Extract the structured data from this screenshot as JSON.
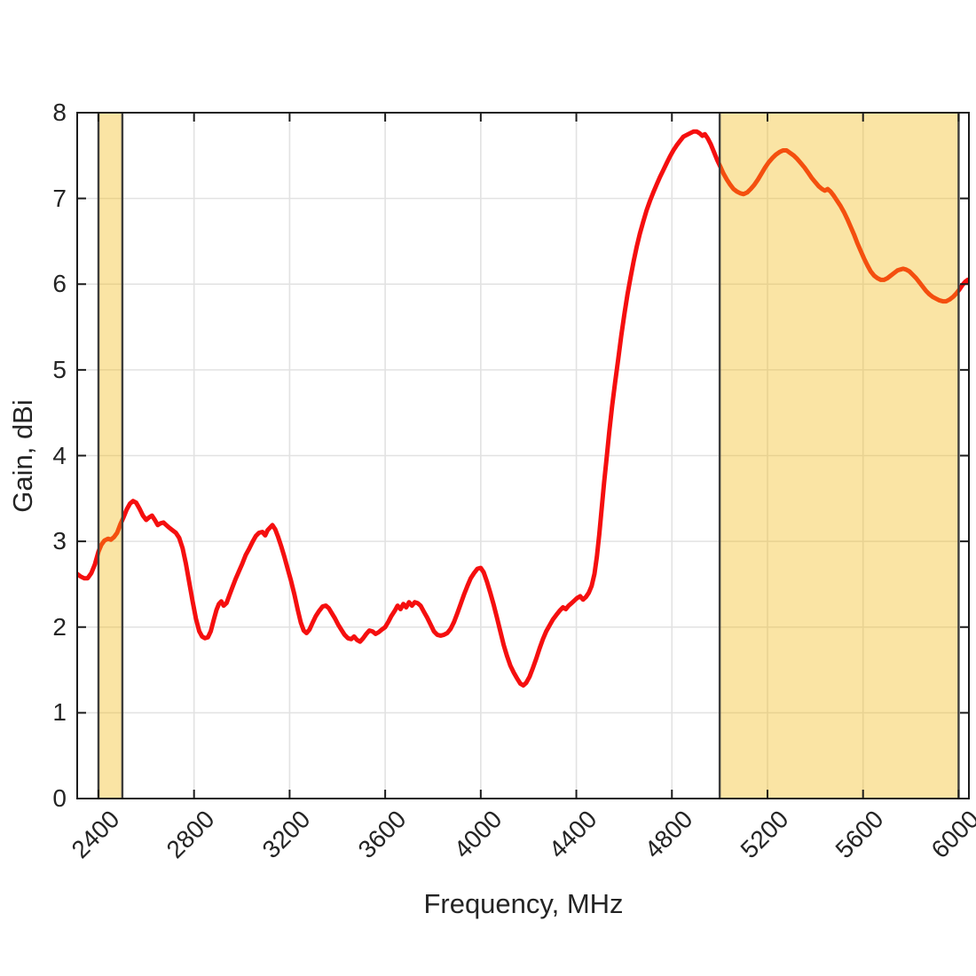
{
  "chart_data": {
    "type": "line",
    "title": "",
    "xlabel": "Frequency, MHz",
    "ylabel": "Gain, dBi",
    "xlim": [
      2311,
      6043
    ],
    "ylim": [
      0,
      8
    ],
    "x_ticks": [
      2400,
      2800,
      3200,
      3600,
      4000,
      4400,
      4800,
      5200,
      5600,
      6000
    ],
    "y_ticks": [
      0,
      1,
      2,
      3,
      4,
      5,
      6,
      7,
      8
    ],
    "grid": true,
    "grid_color": "#e2e2e2",
    "axis_color": "#1c1c1c",
    "text_color": "#242424",
    "line_color": "#f50f0f",
    "line_width": 5,
    "bands": [
      {
        "name": "band-2400-2500",
        "from": 2400,
        "to": 2500,
        "fill": "rgba(242,183,17,0.38)",
        "edge_color": "#3c3c3c"
      },
      {
        "name": "band-5000-6000",
        "from": 5000,
        "to": 6000,
        "fill": "rgba(242,183,17,0.38)",
        "edge_color": "#3c3c3c"
      }
    ],
    "series": [
      {
        "name": "gain",
        "points": [
          [
            2311,
            2.62
          ],
          [
            2325,
            2.59
          ],
          [
            2340,
            2.57
          ],
          [
            2355,
            2.57
          ],
          [
            2370,
            2.63
          ],
          [
            2385,
            2.73
          ],
          [
            2400,
            2.88
          ],
          [
            2412,
            2.96
          ],
          [
            2425,
            3.01
          ],
          [
            2440,
            3.03
          ],
          [
            2452,
            3.02
          ],
          [
            2465,
            3.05
          ],
          [
            2478,
            3.1
          ],
          [
            2492,
            3.2
          ],
          [
            2505,
            3.28
          ],
          [
            2518,
            3.37
          ],
          [
            2532,
            3.44
          ],
          [
            2545,
            3.47
          ],
          [
            2558,
            3.45
          ],
          [
            2572,
            3.38
          ],
          [
            2586,
            3.3
          ],
          [
            2600,
            3.25
          ],
          [
            2612,
            3.28
          ],
          [
            2624,
            3.3
          ],
          [
            2636,
            3.25
          ],
          [
            2648,
            3.19
          ],
          [
            2660,
            3.21
          ],
          [
            2672,
            3.22
          ],
          [
            2684,
            3.19
          ],
          [
            2696,
            3.16
          ],
          [
            2710,
            3.13
          ],
          [
            2724,
            3.1
          ],
          [
            2738,
            3.04
          ],
          [
            2752,
            2.92
          ],
          [
            2766,
            2.74
          ],
          [
            2780,
            2.52
          ],
          [
            2794,
            2.3
          ],
          [
            2808,
            2.1
          ],
          [
            2822,
            1.95
          ],
          [
            2834,
            1.89
          ],
          [
            2846,
            1.87
          ],
          [
            2858,
            1.88
          ],
          [
            2870,
            1.95
          ],
          [
            2882,
            2.08
          ],
          [
            2894,
            2.2
          ],
          [
            2904,
            2.27
          ],
          [
            2914,
            2.3
          ],
          [
            2924,
            2.25
          ],
          [
            2936,
            2.28
          ],
          [
            2948,
            2.37
          ],
          [
            2960,
            2.46
          ],
          [
            2974,
            2.56
          ],
          [
            2988,
            2.65
          ],
          [
            3002,
            2.74
          ],
          [
            3016,
            2.84
          ],
          [
            3030,
            2.91
          ],
          [
            3044,
            2.99
          ],
          [
            3058,
            3.06
          ],
          [
            3072,
            3.1
          ],
          [
            3086,
            3.11
          ],
          [
            3098,
            3.07
          ],
          [
            3108,
            3.13
          ],
          [
            3118,
            3.16
          ],
          [
            3128,
            3.19
          ],
          [
            3140,
            3.14
          ],
          [
            3152,
            3.05
          ],
          [
            3165,
            2.94
          ],
          [
            3178,
            2.82
          ],
          [
            3192,
            2.68
          ],
          [
            3206,
            2.54
          ],
          [
            3220,
            2.38
          ],
          [
            3234,
            2.2
          ],
          [
            3247,
            2.05
          ],
          [
            3259,
            1.96
          ],
          [
            3271,
            1.93
          ],
          [
            3283,
            1.97
          ],
          [
            3296,
            2.05
          ],
          [
            3310,
            2.13
          ],
          [
            3324,
            2.19
          ],
          [
            3338,
            2.24
          ],
          [
            3352,
            2.25
          ],
          [
            3364,
            2.22
          ],
          [
            3377,
            2.16
          ],
          [
            3390,
            2.1
          ],
          [
            3403,
            2.03
          ],
          [
            3416,
            1.97
          ],
          [
            3430,
            1.91
          ],
          [
            3444,
            1.87
          ],
          [
            3458,
            1.86
          ],
          [
            3470,
            1.89
          ],
          [
            3482,
            1.85
          ],
          [
            3495,
            1.83
          ],
          [
            3508,
            1.87
          ],
          [
            3521,
            1.92
          ],
          [
            3534,
            1.96
          ],
          [
            3547,
            1.95
          ],
          [
            3560,
            1.92
          ],
          [
            3573,
            1.94
          ],
          [
            3586,
            1.97
          ],
          [
            3600,
            2.0
          ],
          [
            3613,
            2.06
          ],
          [
            3626,
            2.13
          ],
          [
            3640,
            2.19
          ],
          [
            3652,
            2.25
          ],
          [
            3664,
            2.21
          ],
          [
            3676,
            2.27
          ],
          [
            3688,
            2.23
          ],
          [
            3700,
            2.29
          ],
          [
            3712,
            2.25
          ],
          [
            3724,
            2.29
          ],
          [
            3736,
            2.28
          ],
          [
            3748,
            2.25
          ],
          [
            3762,
            2.18
          ],
          [
            3776,
            2.11
          ],
          [
            3790,
            2.03
          ],
          [
            3804,
            1.95
          ],
          [
            3818,
            1.91
          ],
          [
            3832,
            1.9
          ],
          [
            3846,
            1.91
          ],
          [
            3860,
            1.93
          ],
          [
            3874,
            1.98
          ],
          [
            3888,
            2.06
          ],
          [
            3902,
            2.16
          ],
          [
            3916,
            2.27
          ],
          [
            3930,
            2.38
          ],
          [
            3944,
            2.48
          ],
          [
            3958,
            2.57
          ],
          [
            3972,
            2.63
          ],
          [
            3986,
            2.68
          ],
          [
            4000,
            2.69
          ],
          [
            4012,
            2.64
          ],
          [
            4026,
            2.53
          ],
          [
            4040,
            2.4
          ],
          [
            4054,
            2.26
          ],
          [
            4068,
            2.11
          ],
          [
            4082,
            1.95
          ],
          [
            4096,
            1.79
          ],
          [
            4110,
            1.66
          ],
          [
            4124,
            1.55
          ],
          [
            4138,
            1.47
          ],
          [
            4152,
            1.4
          ],
          [
            4166,
            1.34
          ],
          [
            4178,
            1.32
          ],
          [
            4190,
            1.35
          ],
          [
            4204,
            1.42
          ],
          [
            4218,
            1.52
          ],
          [
            4232,
            1.63
          ],
          [
            4246,
            1.75
          ],
          [
            4260,
            1.86
          ],
          [
            4274,
            1.95
          ],
          [
            4288,
            2.02
          ],
          [
            4302,
            2.09
          ],
          [
            4316,
            2.14
          ],
          [
            4330,
            2.19
          ],
          [
            4344,
            2.23
          ],
          [
            4356,
            2.21
          ],
          [
            4368,
            2.25
          ],
          [
            4380,
            2.28
          ],
          [
            4392,
            2.31
          ],
          [
            4404,
            2.34
          ],
          [
            4416,
            2.36
          ],
          [
            4428,
            2.32
          ],
          [
            4440,
            2.35
          ],
          [
            4452,
            2.4
          ],
          [
            4464,
            2.48
          ],
          [
            4476,
            2.62
          ],
          [
            4486,
            2.82
          ],
          [
            4496,
            3.08
          ],
          [
            4506,
            3.38
          ],
          [
            4516,
            3.68
          ],
          [
            4526,
            3.95
          ],
          [
            4538,
            4.28
          ],
          [
            4550,
            4.58
          ],
          [
            4562,
            4.85
          ],
          [
            4575,
            5.12
          ],
          [
            4588,
            5.4
          ],
          [
            4601,
            5.65
          ],
          [
            4614,
            5.88
          ],
          [
            4627,
            6.08
          ],
          [
            4640,
            6.27
          ],
          [
            4653,
            6.44
          ],
          [
            4666,
            6.59
          ],
          [
            4680,
            6.73
          ],
          [
            4694,
            6.86
          ],
          [
            4708,
            6.97
          ],
          [
            4722,
            7.07
          ],
          [
            4736,
            7.16
          ],
          [
            4750,
            7.25
          ],
          [
            4764,
            7.33
          ],
          [
            4778,
            7.41
          ],
          [
            4792,
            7.49
          ],
          [
            4806,
            7.56
          ],
          [
            4820,
            7.62
          ],
          [
            4834,
            7.67
          ],
          [
            4848,
            7.72
          ],
          [
            4862,
            7.74
          ],
          [
            4876,
            7.76
          ],
          [
            4890,
            7.78
          ],
          [
            4904,
            7.78
          ],
          [
            4916,
            7.76
          ],
          [
            4928,
            7.73
          ],
          [
            4938,
            7.75
          ],
          [
            4950,
            7.7
          ],
          [
            4963,
            7.63
          ],
          [
            4976,
            7.54
          ],
          [
            4989,
            7.45
          ],
          [
            5003,
            7.37
          ],
          [
            5016,
            7.29
          ],
          [
            5030,
            7.22
          ],
          [
            5044,
            7.16
          ],
          [
            5058,
            7.11
          ],
          [
            5072,
            7.08
          ],
          [
            5086,
            7.06
          ],
          [
            5100,
            7.05
          ],
          [
            5115,
            7.07
          ],
          [
            5130,
            7.11
          ],
          [
            5145,
            7.16
          ],
          [
            5160,
            7.22
          ],
          [
            5175,
            7.29
          ],
          [
            5190,
            7.36
          ],
          [
            5205,
            7.42
          ],
          [
            5220,
            7.47
          ],
          [
            5235,
            7.51
          ],
          [
            5250,
            7.54
          ],
          [
            5265,
            7.56
          ],
          [
            5280,
            7.56
          ],
          [
            5295,
            7.53
          ],
          [
            5310,
            7.5
          ],
          [
            5325,
            7.46
          ],
          [
            5340,
            7.41
          ],
          [
            5355,
            7.36
          ],
          [
            5370,
            7.3
          ],
          [
            5385,
            7.24
          ],
          [
            5400,
            7.19
          ],
          [
            5415,
            7.14
          ],
          [
            5428,
            7.11
          ],
          [
            5440,
            7.09
          ],
          [
            5452,
            7.11
          ],
          [
            5464,
            7.08
          ],
          [
            5478,
            7.03
          ],
          [
            5492,
            6.97
          ],
          [
            5506,
            6.91
          ],
          [
            5520,
            6.84
          ],
          [
            5534,
            6.76
          ],
          [
            5548,
            6.67
          ],
          [
            5562,
            6.58
          ],
          [
            5576,
            6.48
          ],
          [
            5590,
            6.39
          ],
          [
            5604,
            6.3
          ],
          [
            5618,
            6.22
          ],
          [
            5632,
            6.15
          ],
          [
            5646,
            6.1
          ],
          [
            5660,
            6.07
          ],
          [
            5674,
            6.05
          ],
          [
            5688,
            6.05
          ],
          [
            5702,
            6.07
          ],
          [
            5716,
            6.1
          ],
          [
            5730,
            6.13
          ],
          [
            5744,
            6.16
          ],
          [
            5756,
            6.17
          ],
          [
            5768,
            6.18
          ],
          [
            5780,
            6.17
          ],
          [
            5794,
            6.15
          ],
          [
            5808,
            6.11
          ],
          [
            5822,
            6.07
          ],
          [
            5836,
            6.02
          ],
          [
            5850,
            5.97
          ],
          [
            5864,
            5.92
          ],
          [
            5878,
            5.88
          ],
          [
            5892,
            5.85
          ],
          [
            5906,
            5.83
          ],
          [
            5920,
            5.81
          ],
          [
            5934,
            5.8
          ],
          [
            5948,
            5.8
          ],
          [
            5962,
            5.82
          ],
          [
            5976,
            5.85
          ],
          [
            5990,
            5.89
          ],
          [
            6004,
            5.94
          ],
          [
            6016,
            5.99
          ],
          [
            6028,
            6.03
          ],
          [
            6038,
            6.05
          ],
          [
            6043,
            6.02
          ]
        ]
      }
    ]
  }
}
